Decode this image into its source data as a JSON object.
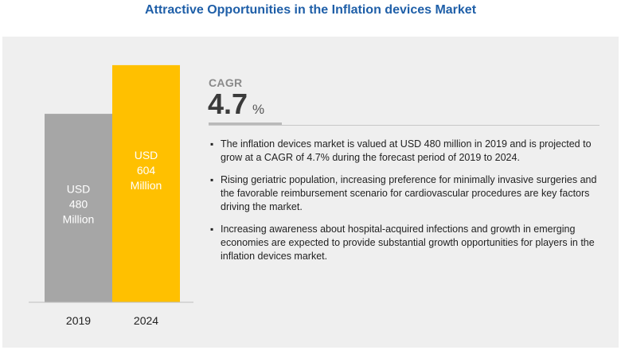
{
  "title": "Attractive Opportunities in the Inflation devices Market",
  "chart_data": {
    "type": "bar",
    "categories": [
      "2019",
      "2024"
    ],
    "values": [
      480,
      604
    ],
    "bar_labels": [
      [
        "USD",
        "480",
        "Million"
      ],
      [
        "USD",
        "604",
        "Million"
      ]
    ],
    "colors": [
      "#a6a6a6",
      "#ffc000"
    ],
    "ylim": [
      0,
      620
    ],
    "grid": false,
    "title": "",
    "xlabel": "",
    "ylabel": ""
  },
  "cagr": {
    "label": "CAGR",
    "value": "4.7",
    "unit": "%"
  },
  "bullets": [
    "The inflation devices market is valued at USD 480 million in 2019 and is projected to grow at a CAGR of 4.7% during the forecast period of 2019 to 2024.",
    "Rising geriatric population, increasing preference for minimally invasive surgeries and the favorable reimbursement scenario for cardiovascular procedures are key factors driving the market.",
    "Increasing awareness about hospital-acquired infections and growth in emerging economies are expected to provide substantial growth opportunities for players in the inflation devices market."
  ]
}
